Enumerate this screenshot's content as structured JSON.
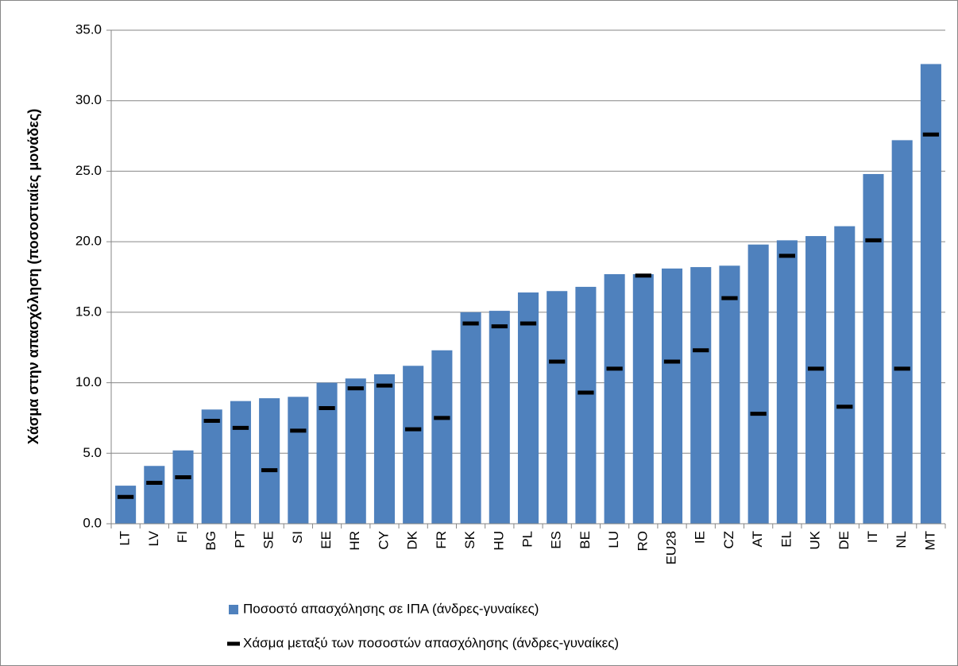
{
  "chart_data": {
    "type": "bar",
    "y_axis_label": "Χάσμα στην απασχόληση (ποσοστιαίες μονάδες)",
    "categories": [
      "LT",
      "LV",
      "FI",
      "BG",
      "PT",
      "SE",
      "SI",
      "EE",
      "HR",
      "CY",
      "DK",
      "FR",
      "SK",
      "HU",
      "PL",
      "ES",
      "BE",
      "LU",
      "RO",
      "EU28",
      "IE",
      "CZ",
      "AT",
      "EL",
      "UK",
      "DE",
      "IT",
      "NL",
      "MT"
    ],
    "series": [
      {
        "name": "Ποσοστό απασχόλησης σε ΙΠΑ (άνδρες-γυναίκες)",
        "style": "bar",
        "color": "#4f81bd",
        "values": [
          2.7,
          4.1,
          5.2,
          8.1,
          8.7,
          8.9,
          9.0,
          10.0,
          10.3,
          10.6,
          11.2,
          12.3,
          15.0,
          15.1,
          16.4,
          16.5,
          16.8,
          17.7,
          17.7,
          18.1,
          18.2,
          18.3,
          19.8,
          20.1,
          20.4,
          21.1,
          24.8,
          27.2,
          32.6
        ]
      },
      {
        "name": "Χάσμα μεταξύ των ποσοστών απασχόλησης (άνδρες-γυναίκες)",
        "style": "dash",
        "color": "#000000",
        "values": [
          1.9,
          2.9,
          3.3,
          7.3,
          6.8,
          3.8,
          6.6,
          8.2,
          9.6,
          9.8,
          6.7,
          7.5,
          14.2,
          14.0,
          14.2,
          11.5,
          9.3,
          11.0,
          17.6,
          11.5,
          12.3,
          16.0,
          7.8,
          19.0,
          11.0,
          8.3,
          20.1,
          11.0,
          27.6
        ]
      }
    ],
    "ylim": [
      0,
      35
    ],
    "yticks": [
      {
        "value": 0,
        "label": "0.0"
      },
      {
        "value": 5,
        "label": "5.0"
      },
      {
        "value": 10,
        "label": "10.0"
      },
      {
        "value": 15,
        "label": "15.0"
      },
      {
        "value": 20,
        "label": "20.0"
      },
      {
        "value": 25,
        "label": "25.0"
      },
      {
        "value": 30,
        "label": "30.0"
      },
      {
        "value": 35,
        "label": "35.0"
      }
    ],
    "grid": true
  }
}
